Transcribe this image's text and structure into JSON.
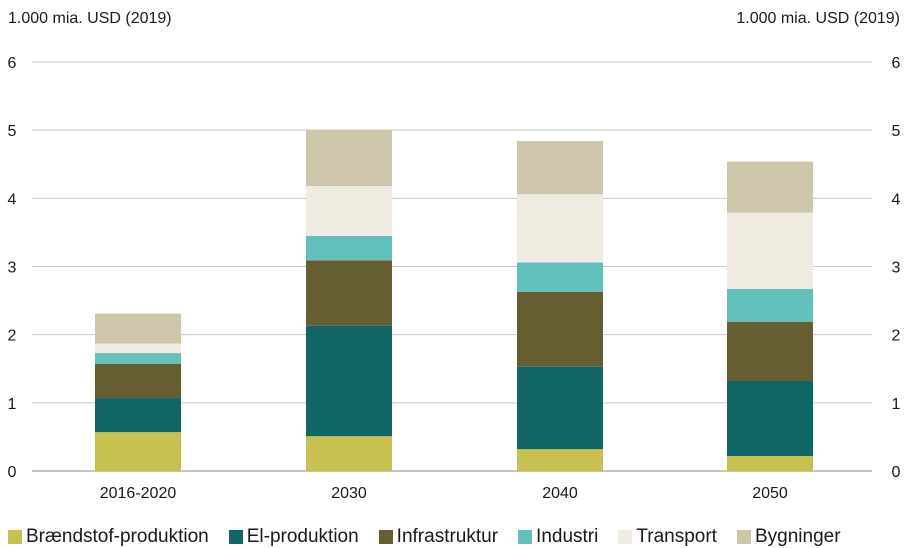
{
  "chart_data": {
    "type": "bar",
    "stacked": true,
    "title": "",
    "ylabel_left": "1.000 mia. USD (2019)",
    "ylabel_right": "1.000 mia. USD (2019)",
    "ylim": [
      0,
      6
    ],
    "yticks": [
      "0",
      "1",
      "2",
      "3",
      "4",
      "5",
      "6"
    ],
    "categories": [
      "2016-2020",
      "2030",
      "2040",
      "2050"
    ],
    "grid": true,
    "legend_position": "bottom",
    "series": [
      {
        "name": "Brændstof-produktion",
        "color": "#c8c14f",
        "values": [
          0.57,
          0.51,
          0.32,
          0.22
        ]
      },
      {
        "name": "El-produktion",
        "color": "#0f6665",
        "values": [
          0.5,
          1.62,
          1.21,
          1.1
        ]
      },
      {
        "name": "Infrastruktur",
        "color": "#665e31",
        "values": [
          0.5,
          0.96,
          1.1,
          0.87
        ]
      },
      {
        "name": "Industri",
        "color": "#62c1bd",
        "values": [
          0.16,
          0.36,
          0.43,
          0.48
        ]
      },
      {
        "name": "Transport",
        "color": "#efebe0",
        "values": [
          0.14,
          0.73,
          1.0,
          1.12
        ]
      },
      {
        "name": "Bygninger",
        "color": "#cdc6ab",
        "values": [
          0.44,
          0.83,
          0.78,
          0.75
        ]
      }
    ]
  }
}
